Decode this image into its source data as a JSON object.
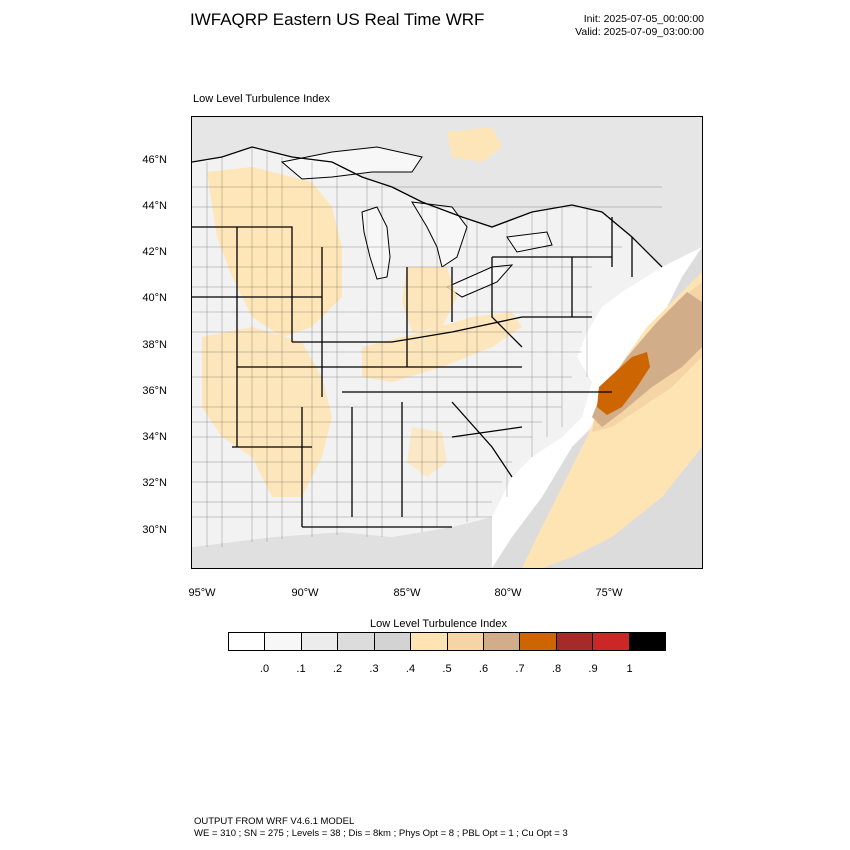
{
  "title": "IWFAQRP Eastern US Real Time WRF",
  "init_time": "Init: 2025-07-05_00:00:00",
  "valid_time": "Valid: 2025-07-09_03:00:00",
  "field_name": "Low Level Turbulence Index",
  "map": {
    "lat_labels": [
      "46°N",
      "44°N",
      "42°N",
      "40°N",
      "38°N",
      "36°N",
      "34°N",
      "32°N",
      "30°N"
    ],
    "lon_labels": [
      "95°W",
      "90°W",
      "85°W",
      "80°W",
      "75°W"
    ],
    "colors": {
      "water": "#ffffff",
      "land_low": "#f2f2f2",
      "land_mid": "#dcdcdc",
      "category_04": "#ffe4b3",
      "category_05": "#f5d4a5",
      "category_06": "#d1ad8a",
      "category_07": "#cd6500",
      "border": "#000000"
    }
  },
  "colorbar": {
    "title": "Low Level Turbulence Index",
    "colors": [
      "#ffffff",
      "#f7f7f7",
      "#ececec",
      "#dcdcdc",
      "#d3d3d3",
      "#ffe4b3",
      "#f5d4a5",
      "#d1ad8a",
      "#cd6500",
      "#a52a2a",
      "#cd2626",
      "#000000"
    ],
    "tick_labels": [
      ".0",
      ".1",
      ".2",
      ".3",
      ".4",
      ".5",
      ".6",
      ".7",
      ".8",
      ".9",
      "1"
    ]
  },
  "footer": {
    "line1": "OUTPUT FROM WRF V4.6.1 MODEL",
    "line2": "WE = 310 ; SN = 275 ; Levels = 38 ; Dis = 8km ; Phys Opt = 8 ; PBL Opt = 1 ; Cu Opt = 3"
  }
}
